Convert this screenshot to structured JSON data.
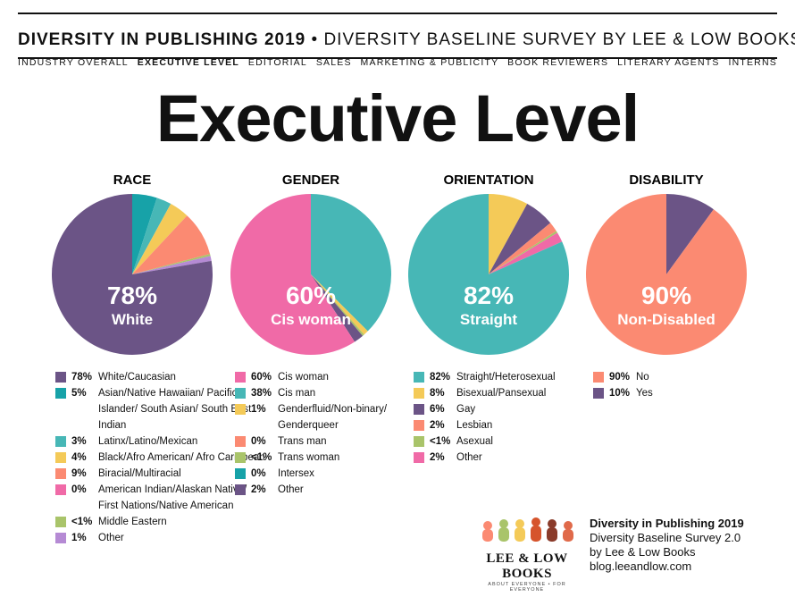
{
  "header": {
    "title_bold": "DIVERSITY IN PUBLISHING 2019",
    "separator": " • ",
    "title_rest": "DIVERSITY BASELINE SURVEY BY LEE & LOW BOOKS"
  },
  "nav": [
    "INDUSTRY OVERALL",
    "EXECUTIVE LEVEL",
    "EDITORIAL",
    "SALES",
    "MARKETING & PUBLICITY",
    "BOOK REVIEWERS",
    "LITERARY AGENTS",
    "INTERNS"
  ],
  "nav_active_index": 1,
  "heading": "Executive Level",
  "colors": {
    "purple": "#6b5486",
    "teal_dark": "#17a2a8",
    "teal": "#47b7b6",
    "yellow": "#f4ca58",
    "salmon": "#fb8a72",
    "pink": "#f06aa7",
    "olive": "#a9c46a",
    "lavender": "#b58ad4"
  },
  "chart_data": [
    {
      "type": "pie",
      "title": "RACE",
      "center_pct": "78%",
      "center_label": "White",
      "slices": [
        {
          "label": "Asian/Native Hawaiian/ Pacific Islander/ South Asian/ South East Indian",
          "value": 5,
          "display": "5%",
          "color": "#17a2a8"
        },
        {
          "label": "Latinx/Latino/Mexican",
          "value": 3,
          "display": "3%",
          "color": "#47b7b6"
        },
        {
          "label": "Black/Afro American/ Afro Caribbean",
          "value": 4,
          "display": "4%",
          "color": "#f4ca58"
        },
        {
          "label": "Biracial/Multiracial",
          "value": 9,
          "display": "9%",
          "color": "#fb8a72"
        },
        {
          "label": "American Indian/Alaskan Native/ First Nations/Native American",
          "value": 0,
          "display": "0%",
          "color": "#f06aa7"
        },
        {
          "label": "Middle Eastern",
          "value": 0.4,
          "display": "<1%",
          "color": "#a9c46a"
        },
        {
          "label": "Other",
          "value": 1,
          "display": "1%",
          "color": "#b58ad4"
        },
        {
          "label": "White/Caucasian",
          "value": 78,
          "display": "78%",
          "color": "#6b5486"
        }
      ],
      "legend_order": [
        7,
        0,
        1,
        2,
        3,
        4,
        5,
        6
      ]
    },
    {
      "type": "pie",
      "title": "GENDER",
      "center_pct": "60%",
      "center_label": "Cis woman",
      "slices": [
        {
          "label": "Cis man",
          "value": 38,
          "display": "38%",
          "color": "#47b7b6"
        },
        {
          "label": "Genderfluid/Non-binary/ Genderqueer",
          "value": 1,
          "display": "1%",
          "color": "#f4ca58"
        },
        {
          "label": "Trans man",
          "value": 0,
          "display": "0%",
          "color": "#fb8a72"
        },
        {
          "label": "Trans woman",
          "value": 0.4,
          "display": "<1%",
          "color": "#a9c46a"
        },
        {
          "label": "Intersex",
          "value": 0,
          "display": "0%",
          "color": "#17a2a8"
        },
        {
          "label": "Other",
          "value": 2,
          "display": "2%",
          "color": "#6b5486"
        },
        {
          "label": "Cis woman",
          "value": 60,
          "display": "60%",
          "color": "#f06aa7"
        }
      ],
      "legend_order": [
        6,
        0,
        1,
        2,
        3,
        4,
        5
      ]
    },
    {
      "type": "pie",
      "title": "ORIENTATION",
      "center_pct": "82%",
      "center_label": "Straight",
      "slices": [
        {
          "label": "Bisexual/Pansexual",
          "value": 8,
          "display": "8%",
          "color": "#f4ca58"
        },
        {
          "label": "Gay",
          "value": 6,
          "display": "6%",
          "color": "#6b5486"
        },
        {
          "label": "Lesbian",
          "value": 2,
          "display": "2%",
          "color": "#fb8a72"
        },
        {
          "label": "Asexual",
          "value": 0.4,
          "display": "<1%",
          "color": "#a9c46a"
        },
        {
          "label": "Other",
          "value": 2,
          "display": "2%",
          "color": "#f06aa7"
        },
        {
          "label": "Straight/Heterosexual",
          "value": 82,
          "display": "82%",
          "color": "#47b7b6"
        }
      ],
      "legend_order": [
        5,
        0,
        1,
        2,
        3,
        4
      ]
    },
    {
      "type": "pie",
      "title": "DISABILITY",
      "center_pct": "90%",
      "center_label": "Non-Disabled",
      "slices": [
        {
          "label": "Yes",
          "value": 10,
          "display": "10%",
          "color": "#6b5486"
        },
        {
          "label": "No",
          "value": 90,
          "display": "90%",
          "color": "#fb8a72"
        }
      ],
      "legend_order": [
        1,
        0
      ]
    }
  ],
  "credit": {
    "line1": "Diversity in Publishing 2019",
    "line2": "Diversity Baseline Survey 2.0",
    "line3": "by Lee & Low Books",
    "line4": "blog.leeandlow.com"
  },
  "logo": {
    "brand": "LEE & LOW BOOKS",
    "tagline": "ABOUT EVERYONE • FOR EVERYONE"
  }
}
